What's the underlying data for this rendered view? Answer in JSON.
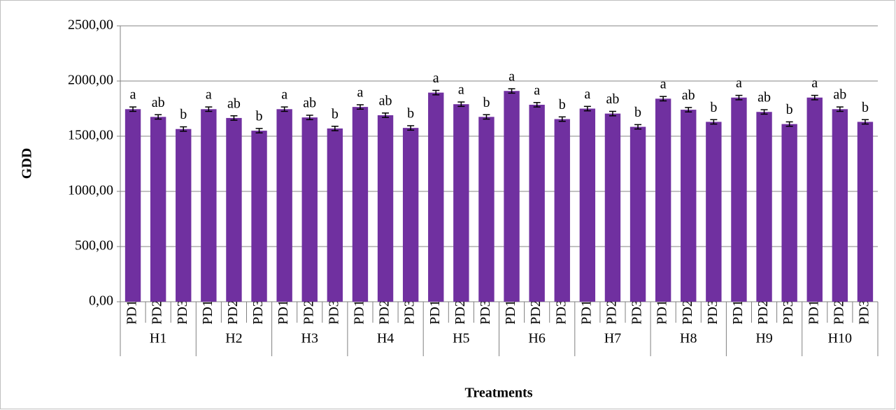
{
  "chart_data": {
    "type": "bar",
    "x_label": "Treatments",
    "y_label": "GDD",
    "categories": [
      "PD1",
      "PD2",
      "PD3",
      "PD1",
      "PD2",
      "PD3",
      "PD1",
      "PD2",
      "PD3",
      "PD1",
      "PD2",
      "PD3",
      "PD1",
      "PD2",
      "PD3",
      "PD1",
      "PD2",
      "PD3",
      "PD1",
      "PD2",
      "PD3",
      "PD1",
      "PD2",
      "PD3",
      "PD1",
      "PD2",
      "PD3",
      "PD1",
      "PD2",
      "PD3"
    ],
    "groups": [
      "H1",
      "H2",
      "H3",
      "H4",
      "H5",
      "H6",
      "H7",
      "H8",
      "H9",
      "H10"
    ],
    "values": [
      1745,
      1675,
      1565,
      1745,
      1665,
      1550,
      1745,
      1670,
      1570,
      1765,
      1690,
      1575,
      1895,
      1790,
      1675,
      1910,
      1785,
      1655,
      1750,
      1705,
      1585,
      1840,
      1740,
      1630,
      1850,
      1720,
      1610,
      1850,
      1745,
      1630
    ],
    "errors": [
      20,
      20,
      20,
      20,
      20,
      20,
      20,
      20,
      20,
      20,
      20,
      20,
      20,
      20,
      20,
      20,
      20,
      20,
      20,
      20,
      20,
      20,
      20,
      20,
      20,
      20,
      20,
      20,
      20,
      20
    ],
    "significance": [
      "a",
      "ab",
      "b",
      "a",
      "ab",
      "b",
      "a",
      "ab",
      "b",
      "a",
      "ab",
      "b",
      "a",
      "a",
      "b",
      "a",
      "a",
      "b",
      "a",
      "ab",
      "b",
      "a",
      "ab",
      "b",
      "a",
      "ab",
      "b",
      "a",
      "ab",
      "b"
    ],
    "color": "#7030a0",
    "ylim": [
      0,
      2500
    ],
    "yticks": [
      {
        "value": 0,
        "label": "0,00"
      },
      {
        "value": 500,
        "label": "500,00"
      },
      {
        "value": 1000,
        "label": "1000,00"
      },
      {
        "value": 1500,
        "label": "1500,00"
      },
      {
        "value": 2000,
        "label": "2000,00"
      },
      {
        "value": 2500,
        "label": "2500,00"
      }
    ],
    "grid": true
  }
}
